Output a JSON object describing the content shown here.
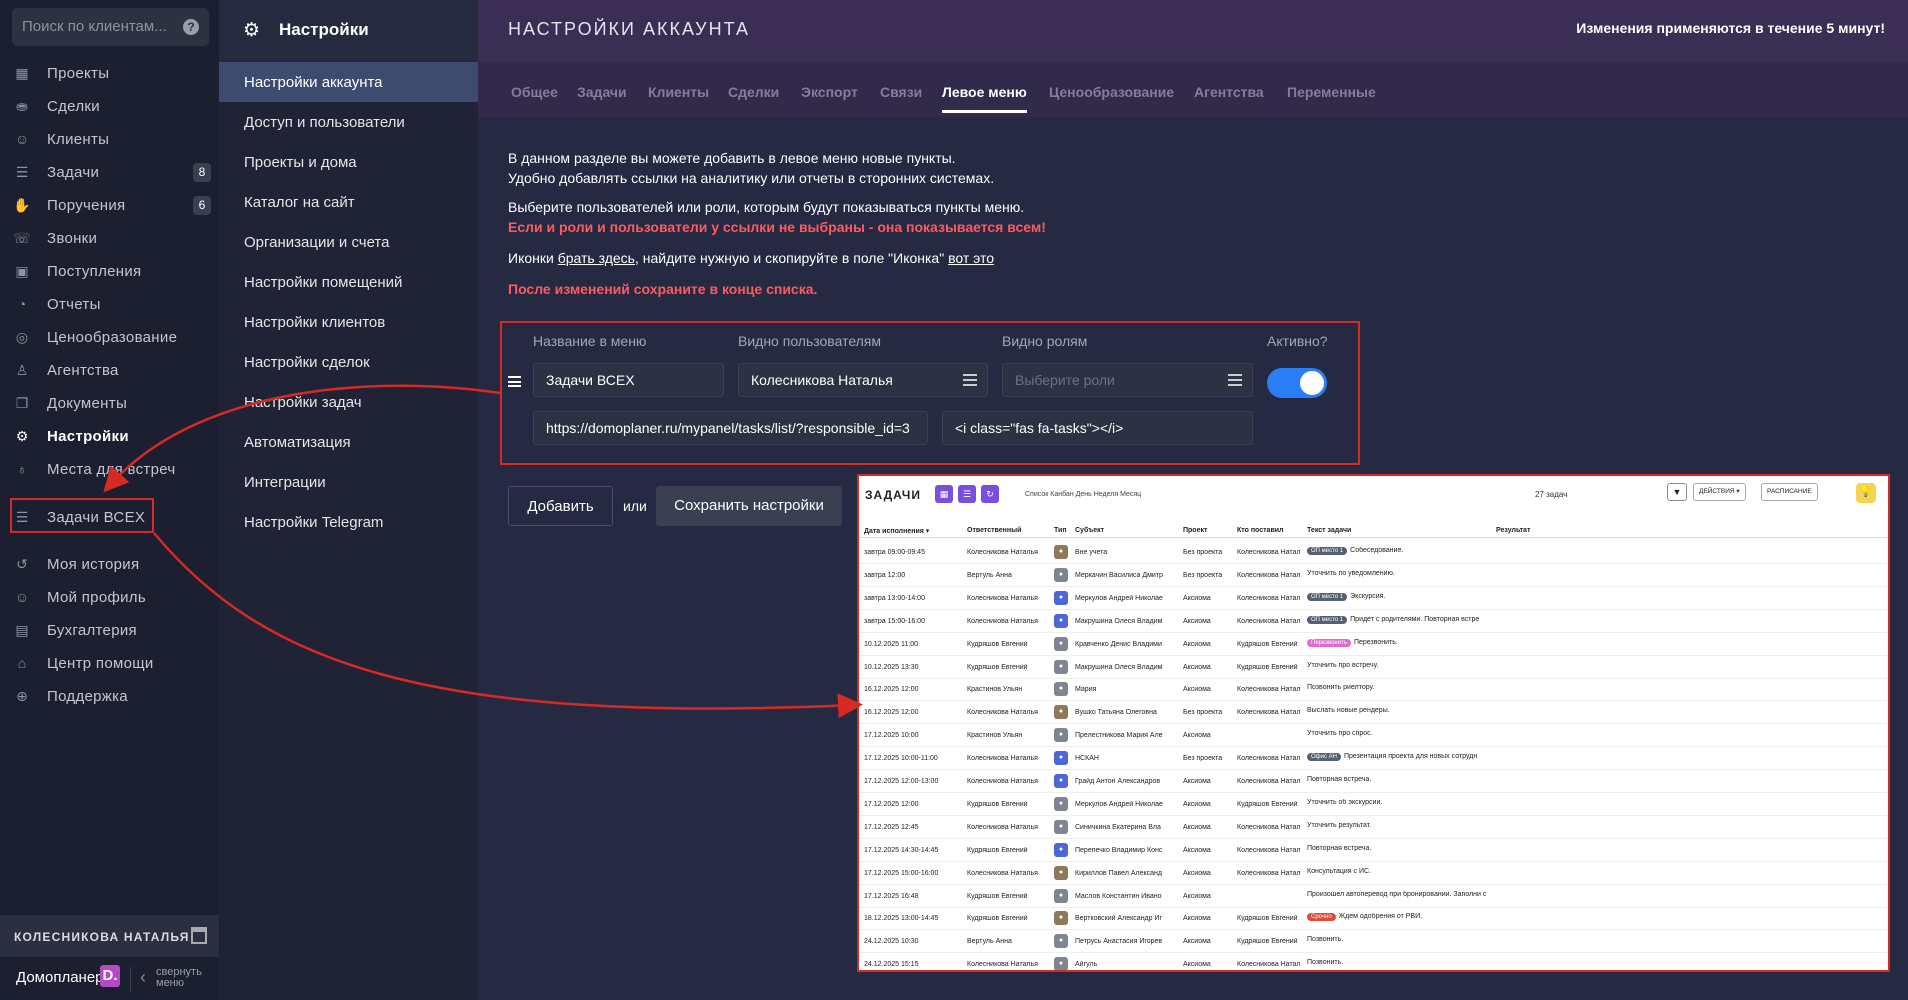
{
  "sidebar": {
    "search_placeholder": "Поиск по клиентам...",
    "items": [
      {
        "label": "Проекты",
        "icon": "building-icon",
        "glyph": "▦"
      },
      {
        "label": "Сделки",
        "icon": "handshake-icon",
        "glyph": "⛂"
      },
      {
        "label": "Клиенты",
        "icon": "users-icon",
        "glyph": "☺"
      },
      {
        "label": "Задачи",
        "icon": "tasks-icon",
        "glyph": "☰",
        "badge": "8"
      },
      {
        "label": "Поручения",
        "icon": "hand-icon",
        "glyph": "✋",
        "badge": "6"
      },
      {
        "label": "Звонки",
        "icon": "phone-icon",
        "glyph": "☏"
      },
      {
        "label": "Поступления",
        "icon": "wallet-icon",
        "glyph": "▣"
      },
      {
        "label": "Отчеты",
        "icon": "chart-pie-icon",
        "glyph": "◔"
      },
      {
        "label": "Ценообразование",
        "icon": "coins-icon",
        "glyph": "◎"
      },
      {
        "label": "Агентства",
        "icon": "user-tie-icon",
        "glyph": "♙"
      },
      {
        "label": "Документы",
        "icon": "documents-icon",
        "glyph": "❐"
      },
      {
        "label": "Настройки",
        "icon": "gear-icon",
        "glyph": "⚙",
        "active": true
      },
      {
        "label": "Места для встреч",
        "icon": "map-marker-icon",
        "glyph": "♁"
      },
      {
        "label": "Задачи ВСЕХ",
        "icon": "tasks-icon",
        "glyph": "☰"
      },
      {
        "label": "Моя история",
        "icon": "history-icon",
        "glyph": "↺"
      },
      {
        "label": "Мой профиль",
        "icon": "user-gear-icon",
        "glyph": "☺"
      },
      {
        "label": "Бухгалтерия",
        "icon": "money-icon",
        "glyph": "▤"
      },
      {
        "label": "Центр помощи",
        "icon": "graduation-cap-icon",
        "glyph": "⌂"
      },
      {
        "label": "Поддержка",
        "icon": "support-icon",
        "glyph": "⊕"
      }
    ],
    "user_name": "КОЛЕСНИКОВА НАТАЛЬЯ",
    "brand": "Домопланер",
    "brand_letter": "D.",
    "collapse_label": "свернуть меню"
  },
  "settings_menu": {
    "title": "Настройки",
    "items": [
      "Настройки аккаунта",
      "Доступ и пользователи",
      "Проекты и дома",
      "Каталог на сайт",
      "Организации и счета",
      "Настройки помещений",
      "Настройки клиентов",
      "Настройки сделок",
      "Настройки задач",
      "Автоматизация",
      "Интеграции",
      "Настройки Telegram"
    ]
  },
  "header": {
    "title": "НАСТРОЙКИ АККАУНТА",
    "notice": "Изменения применяются в течение 5 минут!"
  },
  "tabs": [
    "Общее",
    "Задачи",
    "Клиенты",
    "Сделки",
    "Экспорт",
    "Связи",
    "Левое меню",
    "Ценообразование",
    "Агентства",
    "Переменные"
  ],
  "active_tab": "Левое меню",
  "intro": {
    "line1": "В данном разделе вы можете добавить в левое меню новые пункты.",
    "line2": "Удобно добавлять ссылки на аналитику или отчеты в сторонних системах.",
    "line3": "Выберите пользователей или роли, которым будут показываться пункты меню.",
    "warning": "Если и роли и пользователи у ссылки не выбраны - она показывается всем!",
    "icons_prefix": "Иконки ",
    "icons_link": "брать здесь",
    "icons_middle": ", найдите нужную и скопируйте в поле \"Иконка\" ",
    "icons_example": "вот это",
    "save_note": "После изменений сохраните в конце списка."
  },
  "menu_form": {
    "col_name": "Название в меню",
    "col_users": "Видно пользователям",
    "col_roles": "Видно ролям",
    "col_active": "Активно?",
    "name_value": "Задачи ВСЕХ",
    "users_value": "Колесникова Наталья",
    "roles_placeholder": "Выберите роли",
    "active": true,
    "url_value": "https://domoplaner.ru/mypanel/tasks/list/?responsible_id=3",
    "icon_value": "<i class=\"fas fa-tasks\"></i>"
  },
  "buttons": {
    "add": "Добавить",
    "or": "или",
    "save": "Сохранить настройки"
  },
  "preview": {
    "title": "ЗАДАЧИ",
    "views": "Список  Канбан  День  Неделя  Месяц",
    "count": "27 задач",
    "actions": "ДЕЙСТВИЯ ▾",
    "schedule": "РАСПИСАНИЕ",
    "columns": [
      "Дата исполнения ▾",
      "Ответственный",
      "Тип",
      "Субъект",
      "Проект",
      "Кто поставил",
      "Текст задачи",
      "Результат"
    ],
    "rows": [
      {
        "date": "завтра 09:00-09:45",
        "resp": "Колесникова Наталья",
        "type": "t1",
        "subj": "Вне учета",
        "proj": "Без проекта",
        "by": "Колесникова Натал",
        "tag": "ОП место 1",
        "tagc": "",
        "text": "Собеседование."
      },
      {
        "date": "завтра 12:00",
        "resp": "Вертуль Анна",
        "type": "t2",
        "subj": "Меркачин Василиса Дмитр",
        "proj": "Без проекта",
        "by": "Колесникова Натал",
        "tag": "",
        "tagc": "",
        "text": "Уточнить по уведомлению."
      },
      {
        "date": "завтра 13:00-14:00",
        "resp": "Колесникова Наталья",
        "type": "t3",
        "subj": "Меркулов Андрей Николае",
        "proj": "Аксиома",
        "by": "Колесникова Натал",
        "tag": "ОП место 1",
        "tagc": "",
        "text": "Экскурсия."
      },
      {
        "date": "завтра 15:00-16:00",
        "resp": "Колесникова Наталья",
        "type": "t3",
        "subj": "Макрушина Олеся Владим",
        "proj": "Аксиома",
        "by": "Колесникова Натал",
        "tag": "ОП место 1",
        "tagc": "",
        "text": "Придет с родителями. Повторная встре"
      },
      {
        "date": "10.12.2025 11:00",
        "resp": "Кудряшов Евгений",
        "type": "t2",
        "subj": "Кравченко Денис Владими",
        "proj": "Аксиома",
        "by": "Кудряшов Евгений",
        "tag": "Перезвонить",
        "tagc": "pink",
        "text": "Перезвонить."
      },
      {
        "date": "10.12.2025 13:30",
        "resp": "Кудряшов Евгений",
        "type": "t2",
        "subj": "Макрушина Олеся Владим",
        "proj": "Аксиома",
        "by": "Кудряшов Евгений",
        "tag": "",
        "tagc": "",
        "text": "Уточнить про встречу."
      },
      {
        "date": "16.12.2025 12:00",
        "resp": "Крастинов Ульян",
        "type": "t2",
        "subj": "Мария",
        "proj": "Аксиома",
        "by": "Колесникова Натал",
        "tag": "",
        "tagc": "",
        "text": "Позвонить риелтору."
      },
      {
        "date": "16.12.2025 12:00",
        "resp": "Колесникова Наталья",
        "type": "t1",
        "subj": "Вушко Татьяна Олеговна",
        "proj": "Без проекта",
        "by": "Колесникова Натал",
        "tag": "",
        "tagc": "",
        "text": "Выслать новые рендеры."
      },
      {
        "date": "17.12.2025 10:00",
        "resp": "Крастинов Ульян",
        "type": "t2",
        "subj": "Прелестникова Мария Але",
        "proj": "Аксиома",
        "by": "",
        "tag": "",
        "tagc": "",
        "text": "Уточнить про спрос."
      },
      {
        "date": "17.12.2025 10:00-11:00",
        "resp": "Колесникова Наталья",
        "type": "t3",
        "subj": "НСКАН",
        "proj": "Без проекта",
        "by": "Колесникова Натал",
        "tag": "Офис АН",
        "tagc": "",
        "text": "Презентация проекта для новых сотрудн"
      },
      {
        "date": "17.12.2025 12:00-13:00",
        "resp": "Колесникова Наталья",
        "type": "t3",
        "subj": "Грайд Антон Александров",
        "proj": "Аксиома",
        "by": "Колесникова Натал",
        "tag": "",
        "tagc": "",
        "text": "Повторная встреча."
      },
      {
        "date": "17.12.2025 12:00",
        "resp": "Кудряшов Евгений",
        "type": "t2",
        "subj": "Меркулов Андрей Николае",
        "proj": "Аксиома",
        "by": "Кудряшов Евгений",
        "tag": "",
        "tagc": "",
        "text": "Уточнить об экскурсии."
      },
      {
        "date": "17.12.2025 12:45",
        "resp": "Колесникова Наталья",
        "type": "t2",
        "subj": "Синичкина Екатерина Вла",
        "proj": "Аксиома",
        "by": "Колесникова Натал",
        "tag": "",
        "tagc": "",
        "text": "Уточнить результат."
      },
      {
        "date": "17.12.2025 14:30-14:45",
        "resp": "Кудряшов Евгений",
        "type": "t3",
        "subj": "Перепечко Владимир Конс",
        "proj": "Аксиома",
        "by": "Колесникова Натал",
        "tag": "",
        "tagc": "",
        "text": "Повторная встреча."
      },
      {
        "date": "17.12.2025 15:00-16:00",
        "resp": "Колесникова Наталья",
        "type": "t1",
        "subj": "Кириллов Павел Александ",
        "proj": "Аксиома",
        "by": "Колесникова Натал",
        "tag": "",
        "tagc": "",
        "text": "Консультация с ИС."
      },
      {
        "date": "17.12.2025 16:48",
        "resp": "Кудряшов Евгений",
        "type": "t2",
        "subj": "Маслов Константин Ивано",
        "proj": "Аксиома",
        "by": "",
        "tag": "",
        "tagc": "",
        "text": "Произошел автоперевод при бронировании. Заполни с"
      },
      {
        "date": "18.12.2025 13:00-14:45",
        "resp": "Кудряшов Евгений",
        "type": "t1",
        "subj": "Вертковский Александр Иг",
        "proj": "Аксиома",
        "by": "Кудряшов Евгений",
        "tag": "Срочно",
        "tagc": "red",
        "text": "Ждем одобрения от РВИ."
      },
      {
        "date": "24.12.2025 10:30",
        "resp": "Вертуль Анна",
        "type": "t2",
        "subj": "Петрусь Анастасия Игорев",
        "proj": "Аксиома",
        "by": "Кудряшов Евгений",
        "tag": "",
        "tagc": "",
        "text": "Позвонить."
      },
      {
        "date": "24.12.2025 15:15",
        "resp": "Колесникова Наталья",
        "type": "t2",
        "subj": "Айгуль",
        "proj": "Аксиома",
        "by": "Колесникова Натал",
        "tag": "",
        "tagc": "",
        "text": "Позвонить."
      }
    ]
  },
  "colors": {
    "accent": "#2b7ff6",
    "warning": "#ff5a5f",
    "highlight": "#d62a22",
    "header": "#3b2e55",
    "tabs": "#322a4a"
  }
}
